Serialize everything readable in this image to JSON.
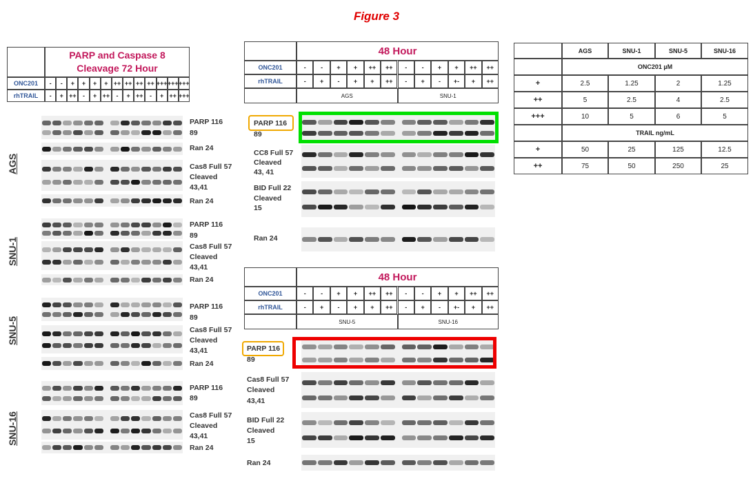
{
  "title": "Figure 3",
  "left": {
    "title": [
      "PARP and Caspase 8",
      "Cleavage 72 Hour"
    ],
    "rows": [
      {
        "label": "ONC201",
        "cells": [
          "-",
          "-",
          "+",
          "+",
          "+",
          "+",
          "++",
          "++",
          "++",
          "++",
          "+++",
          "+++",
          "+++"
        ]
      },
      {
        "label": "rhTRAIL",
        "cells": [
          "-",
          "+",
          "++",
          "-",
          "+",
          "++",
          "-",
          "+",
          "++",
          "-",
          "+",
          "++",
          "+++"
        ]
      }
    ],
    "groups": [
      {
        "name": "AGS",
        "labels": [
          "PARP 116",
          "89",
          "Ran 24",
          "Cas8 Full 57",
          "Cleaved",
          "43,41",
          "Ran 24"
        ]
      },
      {
        "name": "SNU-1",
        "labels": [
          "PARP 116",
          "89",
          "Cas8 Full 57",
          "Cleaved",
          "43,41",
          "Ran 24"
        ]
      },
      {
        "name": "SNU-5",
        "labels": [
          "PARP 116",
          "89",
          "Cas8 Full 57",
          "Cleaved",
          "43,41",
          "Ran 24"
        ]
      },
      {
        "name": "SNU-16",
        "labels": [
          "PARP 116",
          "89",
          "Cas8 Full 57",
          "Cleaved",
          "43,41",
          "Ran 24"
        ]
      }
    ]
  },
  "panels": [
    {
      "title": "48 Hour",
      "rows": [
        {
          "label": "ONC201",
          "cells": [
            "-",
            "-",
            "+",
            "+",
            "++",
            "++",
            "-",
            "-",
            "+",
            "+",
            "++",
            "++"
          ]
        },
        {
          "label": "rhTRAIL",
          "cells": [
            "-",
            "+",
            "-",
            "+",
            "+",
            "++",
            "-",
            "+",
            "-",
            "+-",
            "+",
            "++"
          ]
        }
      ],
      "groups": [
        "AGS",
        "SNU-1"
      ],
      "labels": [
        "PARP 116",
        "89",
        "CC8 Full 57",
        "Cleaved",
        "43, 41",
        "BID Full 22",
        "Cleaved",
        "15",
        "Ran 24"
      ]
    },
    {
      "title": "48 Hour",
      "rows": [
        {
          "label": "ONC201",
          "cells": [
            "-",
            "-",
            "+",
            "+",
            "++",
            "++",
            "-",
            "-",
            "+",
            "+",
            "++",
            "++"
          ]
        },
        {
          "label": "rhTRAIL",
          "cells": [
            "-",
            "+",
            "-",
            "+",
            "+",
            "++",
            "-",
            "+",
            "-",
            "+-",
            "+",
            "++"
          ]
        }
      ],
      "groups": [
        "SNU-5",
        "SNU-16"
      ],
      "labels": [
        "PARP 116",
        "89",
        "Cas8 Full 57",
        "Cleaved",
        "43,41",
        "BID Full 22",
        "Cleaved",
        "15",
        "Ran 24"
      ]
    }
  ],
  "table": {
    "header": [
      "AGS",
      "SNU-1",
      "SNU-5",
      "SNU-16"
    ],
    "sections": [
      {
        "title": "ONC201 µM",
        "rows": [
          [
            "+",
            "2.5",
            "1.25",
            "2",
            "1.25"
          ],
          [
            "++",
            "5",
            "2.5",
            "4",
            "2.5"
          ],
          [
            "+++",
            "10",
            "5",
            "6",
            "5"
          ]
        ]
      },
      {
        "title": "TRAIL ng/mL",
        "rows": [
          [
            "+",
            "50",
            "25",
            "125",
            "12.5"
          ],
          [
            "++",
            "75",
            "50",
            "250",
            "25"
          ]
        ]
      }
    ]
  }
}
